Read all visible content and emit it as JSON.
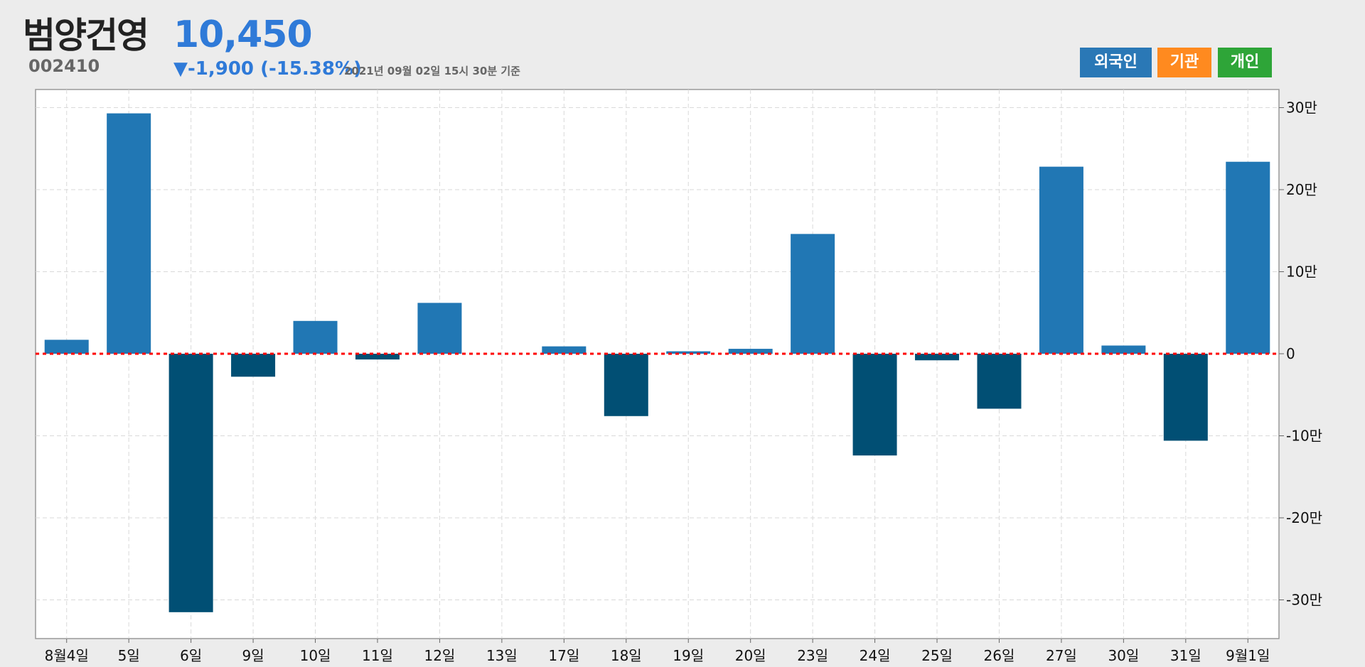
{
  "header": {
    "stock_name": "범양건영",
    "stock_code": "002410",
    "price": "10,450",
    "change": "▼-1,900 (-15.38%)",
    "as_of": "2021년 09월 02일 15시 30분 기준"
  },
  "buttons": {
    "foreign": "외국인",
    "institution": "기관",
    "individual": "개인"
  },
  "colors": {
    "positive": "#2177b4",
    "negative": "#014f74",
    "zero_line": "#ff0000",
    "foreign": "#2a78b6",
    "institution": "#ff8a1f",
    "individual": "#2ea538",
    "price": "#2f7ad8"
  },
  "chart_data": {
    "type": "bar",
    "title": "",
    "series_name": "외국인",
    "categories": [
      "8월4일",
      "5일",
      "6일",
      "9일",
      "10일",
      "11일",
      "12일",
      "13일",
      "17일",
      "18일",
      "19일",
      "20일",
      "23일",
      "24일",
      "25일",
      "26일",
      "27일",
      "30일",
      "31일",
      "9월1일"
    ],
    "values": [
      17000,
      293000,
      -315000,
      -28000,
      40000,
      -7000,
      62000,
      0,
      9000,
      -76000,
      3000,
      6000,
      146000,
      -124000,
      -8000,
      -67000,
      228000,
      10000,
      -106000,
      234000
    ],
    "ylim": [
      -345000,
      322000
    ],
    "yticks": [
      -300000,
      -200000,
      -100000,
      0,
      100000,
      200000,
      300000
    ],
    "ytick_labels": [
      "-30만",
      "-20만",
      "-10만",
      "0",
      "10만",
      "20만",
      "30만"
    ],
    "grid": true,
    "y_axis_position": "right"
  }
}
